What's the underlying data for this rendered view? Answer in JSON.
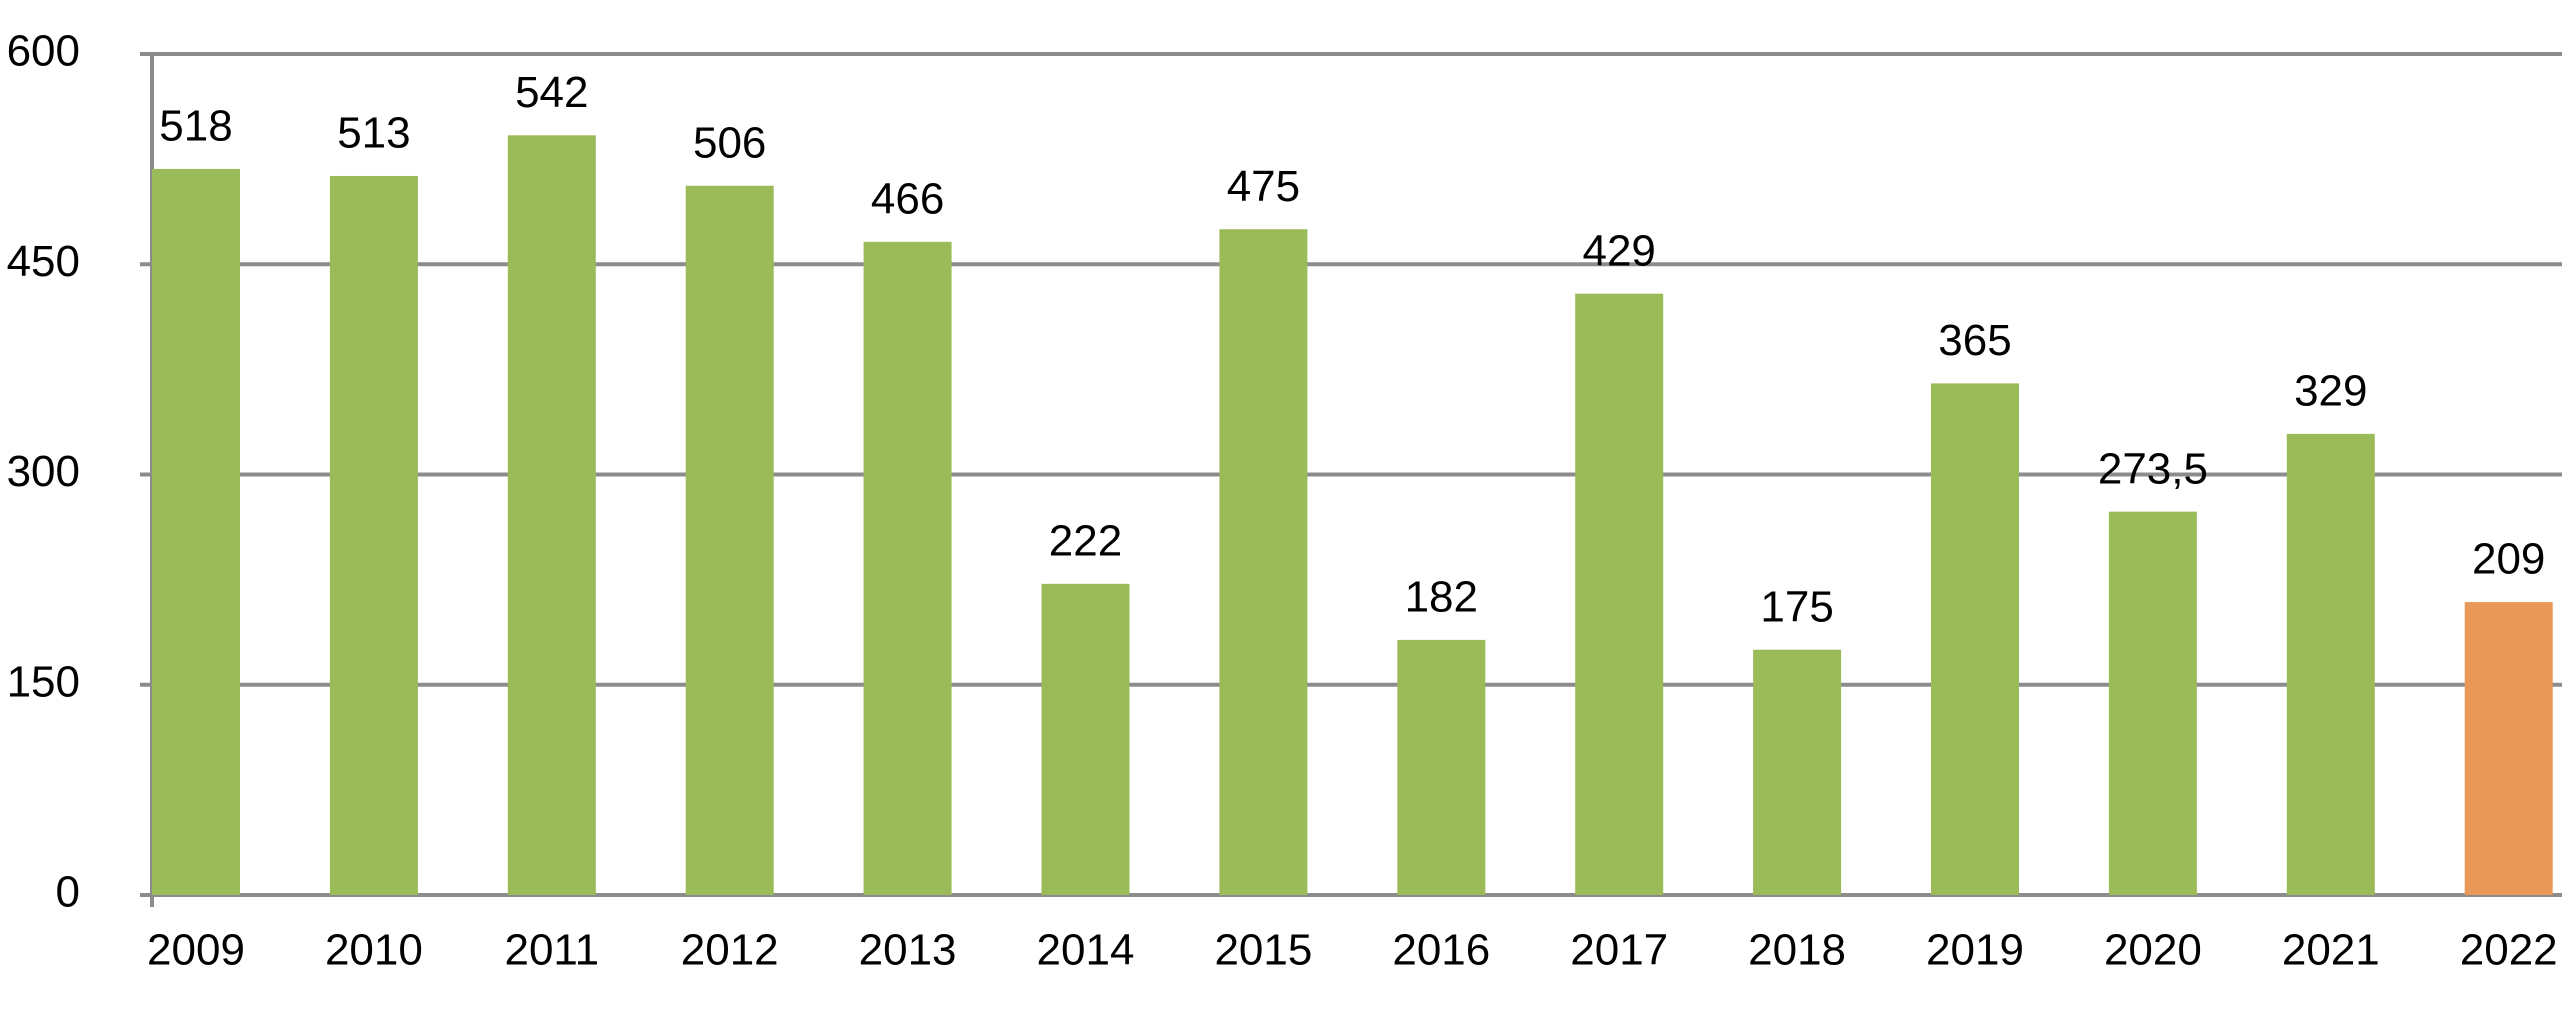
{
  "chart_data": {
    "type": "bar",
    "categories": [
      "2009",
      "2010",
      "2011",
      "2012",
      "2013",
      "2014",
      "2015",
      "2016",
      "2017",
      "2018",
      "2019",
      "2020",
      "2021",
      "2022"
    ],
    "values": [
      518,
      513,
      542,
      506,
      466,
      222,
      475,
      182,
      429,
      175,
      365,
      273.5,
      329,
      209
    ],
    "value_labels": [
      "518",
      "513",
      "542",
      "506",
      "466",
      "222",
      "475",
      "182",
      "429",
      "175",
      "365",
      "273,5",
      "329",
      "209"
    ],
    "colors": [
      "#9bbb59",
      "#9bbb59",
      "#9bbb59",
      "#9bbb59",
      "#9bbb59",
      "#9bbb59",
      "#9bbb59",
      "#9bbb59",
      "#9bbb59",
      "#9bbb59",
      "#9bbb59",
      "#9bbb59",
      "#9bbb59",
      "#e8995a"
    ],
    "ylim": [
      0,
      600
    ],
    "yticks": [
      0,
      150,
      300,
      450,
      600
    ],
    "grid": true
  }
}
